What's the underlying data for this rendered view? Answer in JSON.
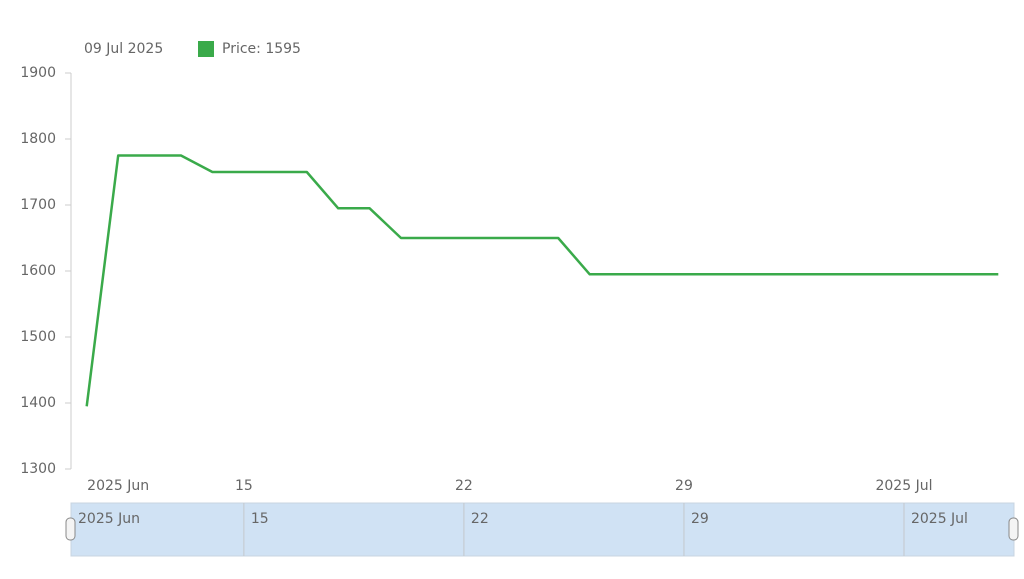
{
  "chart_data": {
    "type": "line",
    "legend": {
      "date": "09 Jul 2025",
      "text": "Price: 1595"
    },
    "x": [
      "2025-06-10",
      "2025-06-11",
      "2025-06-12",
      "2025-06-13",
      "2025-06-14",
      "2025-06-15",
      "2025-06-16",
      "2025-06-17",
      "2025-06-18",
      "2025-06-19",
      "2025-06-20",
      "2025-06-21",
      "2025-06-22",
      "2025-06-23",
      "2025-06-24",
      "2025-06-25",
      "2025-06-26",
      "2025-06-27",
      "2025-06-28",
      "2025-06-29",
      "2025-06-30",
      "2025-07-01",
      "2025-07-02",
      "2025-07-03",
      "2025-07-04",
      "2025-07-05",
      "2025-07-06",
      "2025-07-07",
      "2025-07-08",
      "2025-07-09"
    ],
    "series": [
      {
        "color": "#3aaa4a",
        "values": [
          1395,
          1775,
          1775,
          1775,
          1750,
          1750,
          1750,
          1750,
          1695,
          1695,
          1650,
          1650,
          1650,
          1650,
          1650,
          1650,
          1595,
          1595,
          1595,
          1595,
          1595,
          1595,
          1595,
          1595,
          1595,
          1595,
          1595,
          1595,
          1595,
          1595
        ]
      }
    ],
    "xlim": [
      "2025-06-09T12:00",
      "2025-07-09T12:00"
    ],
    "xticks": [
      {
        "value": "2025-06-11",
        "label": "2025 Jun"
      },
      {
        "value": "2025-06-15",
        "label": "15"
      },
      {
        "value": "2025-06-22",
        "label": "22"
      },
      {
        "value": "2025-06-29",
        "label": "29"
      },
      {
        "value": "2025-07-06",
        "label": "2025 Jul"
      }
    ],
    "ylim": [
      1300,
      1900
    ],
    "yticks": [
      1300,
      1400,
      1500,
      1600,
      1700,
      1800,
      1900
    ]
  }
}
